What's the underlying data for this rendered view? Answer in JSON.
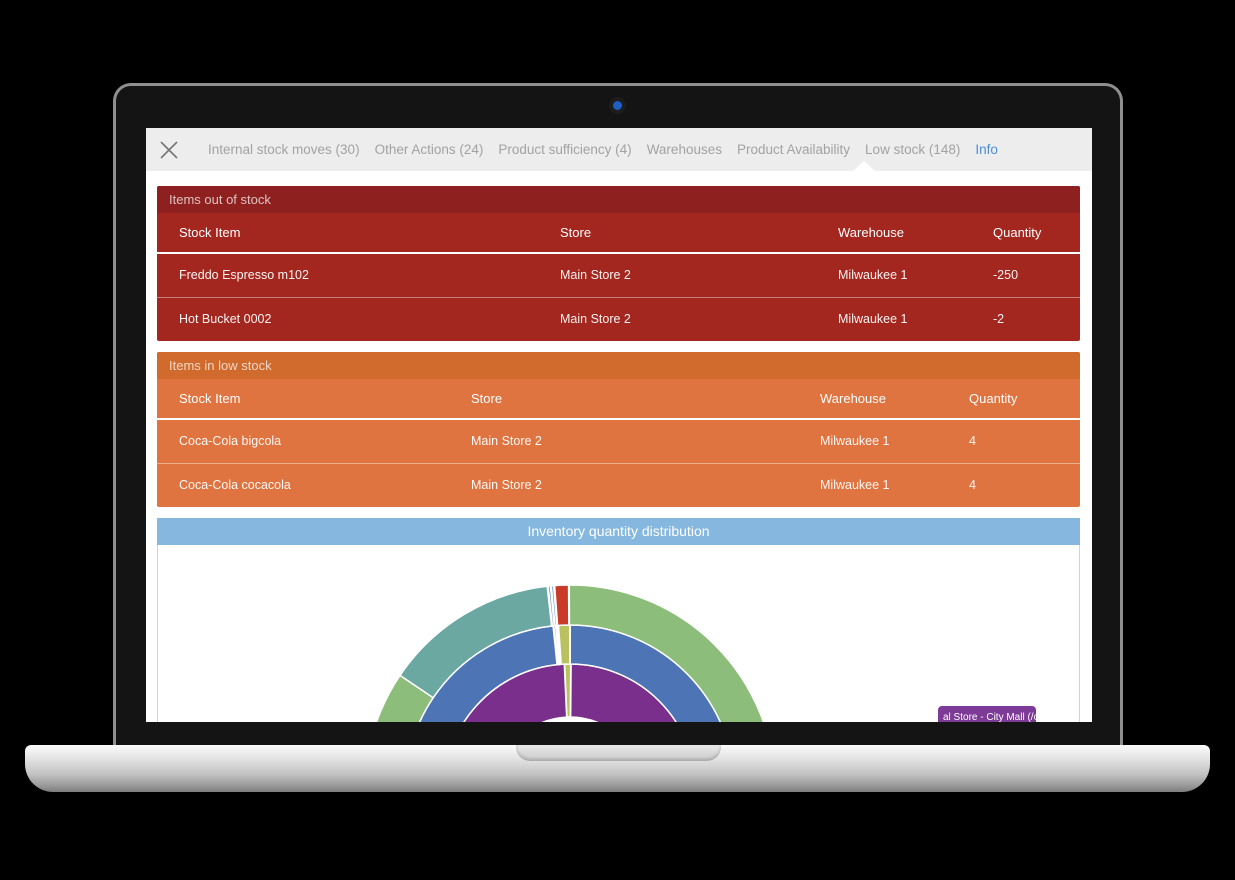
{
  "navbar": {
    "items": [
      {
        "label": "Internal stock moves (30)",
        "active": false
      },
      {
        "label": "Other Actions (24)",
        "active": false
      },
      {
        "label": "Product sufficiency (4)",
        "active": false
      },
      {
        "label": "Warehouses",
        "active": false
      },
      {
        "label": "Product Availability",
        "active": false
      },
      {
        "label": "Low stock (148)",
        "active": false
      },
      {
        "label": "Info",
        "active": true
      }
    ],
    "colors": {
      "background": "#ededed",
      "text": "#a2a2a2",
      "active_text": "#4e8fd4"
    }
  },
  "out_of_stock_panel": {
    "title": "Items out of stock",
    "columns": [
      "Stock Item",
      "Store",
      "Warehouse",
      "Quantity"
    ],
    "rows": [
      [
        "Freddo Espresso m102",
        "Main Store 2",
        "Milwaukee 1",
        "-250"
      ],
      [
        "Hot Bucket 0002",
        "Main Store 2",
        "Milwaukee 1",
        "-2"
      ]
    ],
    "colors": {
      "header": "#8e2120",
      "body": "#a3271f"
    }
  },
  "low_stock_panel": {
    "title": "Items in low stock",
    "columns": [
      "Stock Item",
      "Store",
      "Warehouse",
      "Quantity"
    ],
    "rows": [
      [
        "Coca-Cola bigcola",
        "Main Store 2",
        "Milwaukee 1",
        "4"
      ],
      [
        "Coca-Cola cocacola",
        "Main Store 2",
        "Milwaukee 1",
        "4"
      ]
    ],
    "colors": {
      "header": "#d06a2d",
      "body": "#e07441"
    }
  },
  "chart_panel": {
    "title": "Inventory quantity distribution",
    "colors": {
      "header": "#85b7df",
      "border": "#bdd8ec"
    },
    "tooltip": {
      "text": "al Store - City Mall (/ce",
      "color": "#7d3a97"
    }
  },
  "chart_data": {
    "type": "pie",
    "subtype": "sunburst-half-donut",
    "title": "Inventory quantity distribution",
    "legend": "none",
    "visible_arc_degrees": [
      0,
      180
    ],
    "rings": [
      {
        "name": "inner",
        "r_inner": 73,
        "r_outer": 126,
        "segments": [
          {
            "name": "inner-purple-left",
            "color": "#7b2f8c",
            "start_deg": 180,
            "end_deg": 92.6
          },
          {
            "name": "inner-olive-sliver",
            "color": "#b9c25f",
            "start_deg": 92.4,
            "end_deg": 89.7
          },
          {
            "name": "inner-purple-right",
            "color": "#7b2f8c",
            "start_deg": 89.5,
            "end_deg": 0
          }
        ]
      },
      {
        "name": "middle",
        "r_inner": 126,
        "r_outer": 165,
        "segments": [
          {
            "name": "middle-blue-left",
            "color": "#4d74b5",
            "start_deg": 180,
            "end_deg": 95.9
          },
          {
            "name": "middle-purple-sliver",
            "color": "#7b2f8c",
            "start_deg": 95.6,
            "end_deg": 95.0
          },
          {
            "name": "middle-blue-sliver",
            "color": "#4d74b5",
            "start_deg": 94.8,
            "end_deg": 94.3
          },
          {
            "name": "middle-olive-wedge",
            "color": "#b9c25f",
            "start_deg": 94.0,
            "end_deg": 90.1
          },
          {
            "name": "middle-blue-right",
            "color": "#4d74b5",
            "start_deg": 89.9,
            "end_deg": 0
          }
        ]
      },
      {
        "name": "outer",
        "r_inner": 165,
        "r_outer": 205,
        "segments": [
          {
            "name": "outer-green-bottom-left",
            "color": "#8cbd7a",
            "start_deg": 180,
            "end_deg": 146
          },
          {
            "name": "outer-teal",
            "color": "#6aa8a1",
            "start_deg": 146,
            "end_deg": 96.4
          },
          {
            "name": "outer-blue-sliver-1",
            "color": "#4d74b5",
            "start_deg": 96.1,
            "end_deg": 95.5
          },
          {
            "name": "outer-blue-sliver-2",
            "color": "#4d74b5",
            "start_deg": 95.2,
            "end_deg": 94.6
          },
          {
            "name": "outer-red-wedge",
            "color": "#c93a28",
            "start_deg": 94.3,
            "end_deg": 90.4
          },
          {
            "name": "outer-green-right",
            "color": "#8cbd7a",
            "start_deg": 90.2,
            "end_deg": 0
          }
        ]
      }
    ]
  }
}
